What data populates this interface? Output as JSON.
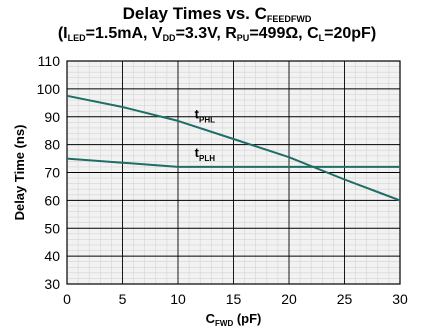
{
  "header": {
    "title_main": "Delay Times vs. C",
    "title_main_sub": "FEEDFWD",
    "cond_a": "(I",
    "cond_a_sub": "LED",
    "cond_b": "=1.5mA, V",
    "cond_b_sub": "DD",
    "cond_c": "=3.3V, R",
    "cond_c_sub": "PU",
    "cond_d": "=499Ω, C",
    "cond_d_sub": "L",
    "cond_e": "=20pF)"
  },
  "chart_data": {
    "type": "line",
    "title": "Delay Times vs. CFEEDFWD (ILED=1.5mA, VDD=3.3V, RPU=499Ω, CL=20pF)",
    "xlabel": "C",
    "xlabel_sub": "FWD",
    "xlabel_unit": " (pF)",
    "ylabel": "Delay Time (ns)",
    "xlim": [
      0,
      30
    ],
    "ylim": [
      30,
      110
    ],
    "xticks": [
      0,
      5,
      10,
      15,
      20,
      25,
      30
    ],
    "yticks": [
      30,
      40,
      50,
      60,
      70,
      80,
      90,
      100,
      110
    ],
    "grid": true,
    "series": [
      {
        "name": "tPHL",
        "label_main": "t",
        "label_sub": "PHL",
        "color": "#1f6e66",
        "x": [
          0,
          5,
          10,
          15,
          20,
          25,
          30
        ],
        "y": [
          97.5,
          93.5,
          88.5,
          82,
          75.5,
          67.5,
          60
        ]
      },
      {
        "name": "tPLH",
        "label_main": "t",
        "label_sub": "PLH",
        "color": "#1f6e66",
        "x": [
          0,
          5,
          10,
          15,
          20,
          25,
          30
        ],
        "y": [
          75,
          73.5,
          72,
          72,
          72,
          72,
          72
        ]
      }
    ]
  }
}
